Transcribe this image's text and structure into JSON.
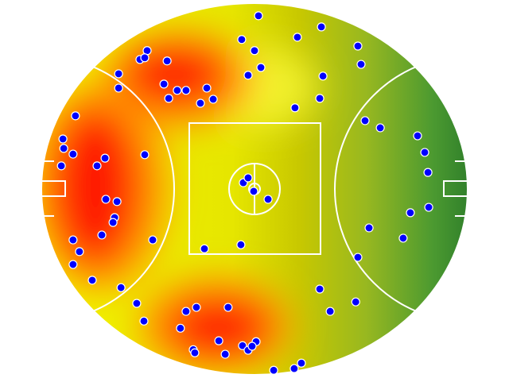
{
  "chart_data": {
    "type": "scatter",
    "x": [
      1.5,
      -4.8,
      16.1,
      25.1,
      0,
      38.8,
      40.0,
      2.4,
      -2.4,
      25.7,
      -40.3,
      -43.0,
      -41.2,
      -32.8,
      -51.0,
      -51.0,
      -34.0,
      -29.0,
      -25.7,
      -17.9,
      -32.2,
      -20.3,
      -15.5,
      15.2,
      24.5,
      41.5,
      47.2,
      61.2,
      63.9,
      65.1,
      65.4,
      58.5,
      43.0,
      55.8,
      38.8,
      -67.2,
      -71.9,
      -71.6,
      -68.1,
      -72.5,
      -59.1,
      -56.1,
      -41.2,
      -55.8,
      -51.6,
      -52.5,
      -53.1,
      -57.3,
      -38.2,
      -68.1,
      -65.7,
      -68.1,
      -60.9,
      -50.1,
      -44.2,
      -41.5,
      -25.7,
      -21.8,
      -9.9,
      -27.8,
      -13.4,
      -23.0,
      -22.4,
      -11.0,
      -4.5,
      -2.4,
      0.6,
      -0.9,
      7.2,
      14.9,
      17.6,
      24.5,
      28.4,
      38.0,
      -18.8,
      -5.1,
      -4.2,
      -2.4,
      -0.3,
      5.1
    ],
    "y": [
      60.6,
      52.3,
      53.1,
      56.7,
      48.4,
      50.0,
      43.6,
      42.5,
      39.8,
      39.5,
      48.4,
      45.3,
      45.9,
      44.8,
      40.3,
      35.3,
      36.7,
      34.5,
      34.5,
      35.3,
      31.7,
      30.0,
      31.4,
      28.4,
      31.7,
      23.9,
      21.4,
      18.6,
      12.8,
      5.8,
      -6.4,
      -8.3,
      -13.6,
      -17.2,
      -23.9,
      25.6,
      17.5,
      14.2,
      12.2,
      8.1,
      8.1,
      10.8,
      12.0,
      -3.6,
      -4.4,
      -10.0,
      -11.7,
      -16.1,
      -17.8,
      -17.8,
      -21.9,
      -26.4,
      -31.9,
      -34.5,
      -40.0,
      -46.2,
      -42.8,
      -41.4,
      -41.4,
      -48.7,
      -53.1,
      -56.2,
      -57.3,
      -57.8,
      -54.8,
      -56.4,
      -53.4,
      -55.0,
      -63.4,
      -62.8,
      -60.9,
      -35.0,
      -42.8,
      -39.5,
      -20.9,
      -19.5,
      2.2,
      3.9,
      -0.8,
      -3.6
    ],
    "color": "#0000ff",
    "xlim": [
      -80,
      80
    ],
    "ylim": [
      -65,
      65
    ]
  }
}
